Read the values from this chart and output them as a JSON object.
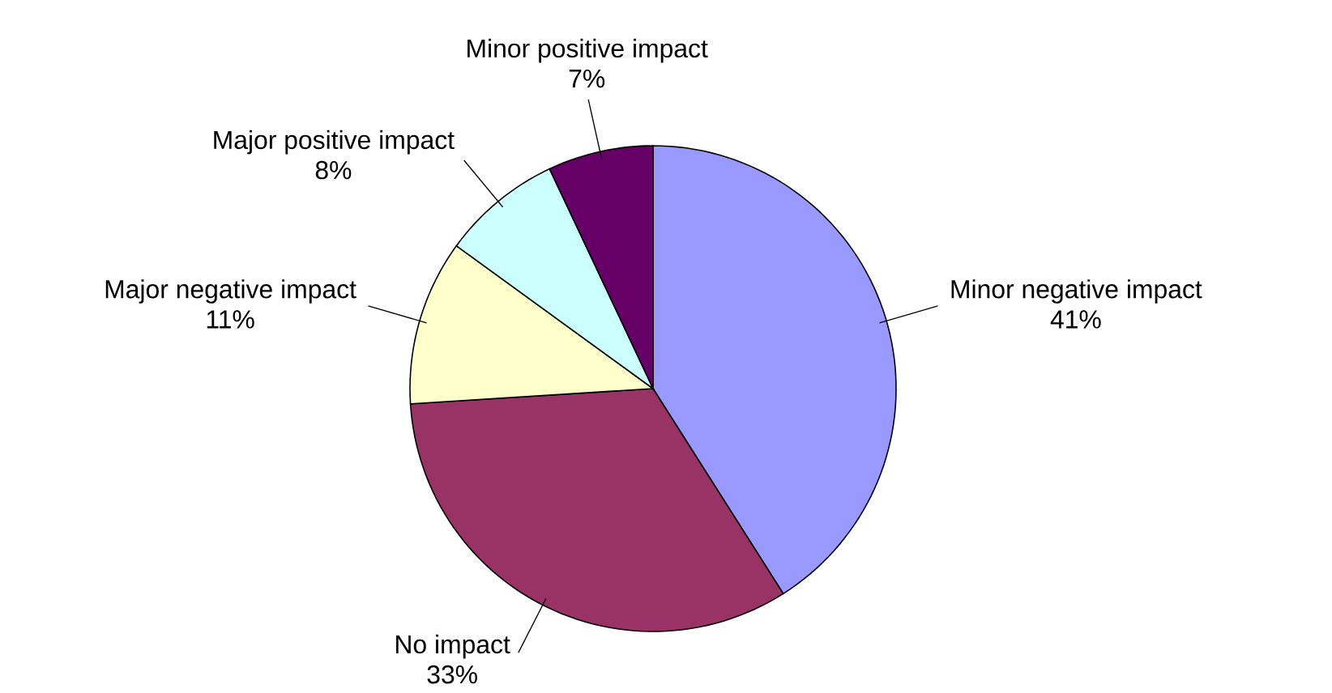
{
  "chart_data": {
    "type": "pie",
    "categories": [
      "Minor negative impact",
      "No impact",
      "Major negative impact",
      "Major positive impact",
      "Minor positive impact"
    ],
    "values": [
      41,
      33,
      11,
      8,
      7
    ],
    "value_labels": [
      "41%",
      "33%",
      "11%",
      "8%",
      "7%"
    ],
    "colors": [
      "#9999ff",
      "#993366",
      "#ffffcc",
      "#ccffff",
      "#660066"
    ]
  }
}
